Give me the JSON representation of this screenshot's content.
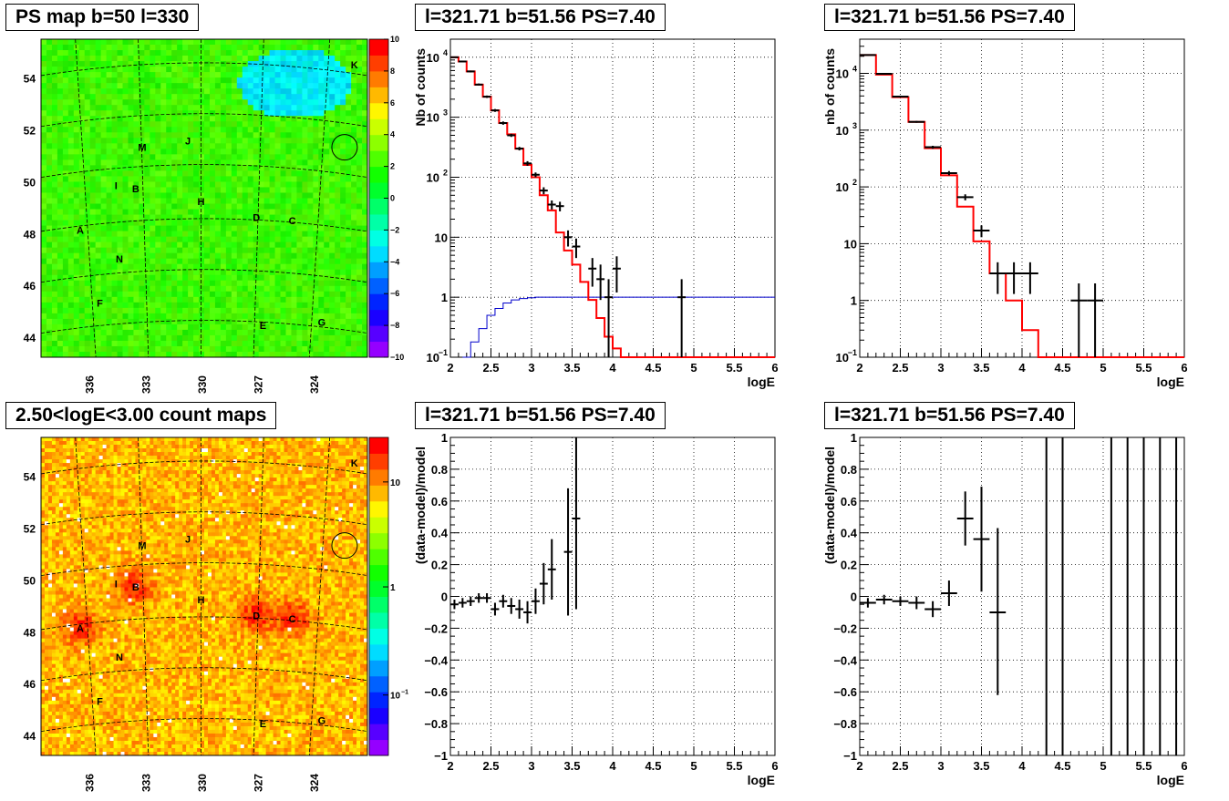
{
  "chart_data": [
    {
      "type": "heatmap",
      "title": "PS map b=50 l=330",
      "xlabel": "",
      "ylabel": "",
      "x_ticks": [
        "336",
        "333",
        "330",
        "327",
        "324"
      ],
      "y_ticks": [
        "54",
        "52",
        "50",
        "48",
        "46",
        "44"
      ],
      "colorbar": {
        "min": -10,
        "max": 10,
        "ticks": [
          "10",
          "8",
          "6",
          "4",
          "2",
          "0",
          "−2",
          "−4",
          "−6",
          "−8",
          "−10"
        ]
      },
      "sources": [
        "A",
        "B",
        "C",
        "D",
        "E",
        "F",
        "G",
        "H",
        "I",
        "J",
        "K",
        "M",
        "N"
      ]
    },
    {
      "type": "line",
      "title": "l=321.71 b=51.56 PS=7.40",
      "xlabel": "logE",
      "ylabel": "Nb of counts",
      "xlim": [
        2,
        6
      ],
      "ylim": [
        0.1,
        20000
      ],
      "log_y": true,
      "grid": true,
      "x_ticks": [
        "2",
        "2.5",
        "3",
        "3.5",
        "4",
        "4.5",
        "5",
        "5.5",
        "6"
      ],
      "y_ticks": [
        {
          "v": 0.1,
          "base": "10",
          "exp": "−1"
        },
        {
          "v": 1,
          "base": "1",
          "exp": ""
        },
        {
          "v": 10,
          "base": "10",
          "exp": ""
        },
        {
          "v": 100,
          "base": "10",
          "exp": "2"
        },
        {
          "v": 1000,
          "base": "10",
          "exp": "3"
        },
        {
          "v": 10000,
          "base": "10",
          "exp": "4"
        }
      ],
      "model_step": {
        "edges": [
          2.0,
          2.1,
          2.2,
          2.3,
          2.4,
          2.5,
          2.6,
          2.7,
          2.8,
          2.9,
          3.0,
          3.1,
          3.2,
          3.3,
          3.4,
          3.5,
          3.6,
          3.7,
          3.8,
          3.9,
          4.0,
          4.1,
          4.2,
          6.0
        ],
        "values": [
          10000,
          8500,
          5800,
          3500,
          2200,
          1300,
          800,
          520,
          300,
          160,
          100,
          50,
          28,
          12,
          6,
          3.5,
          1.8,
          0.9,
          0.45,
          0.22,
          0.14,
          0.1,
          0.1
        ]
      },
      "exposure_step": {
        "edges": [
          2.15,
          2.25,
          2.35,
          2.45,
          2.55,
          2.65,
          2.75,
          2.85,
          2.95,
          3.05,
          6.0
        ],
        "values": [
          0.1,
          0.18,
          0.3,
          0.5,
          0.65,
          0.8,
          0.9,
          0.95,
          0.98,
          1.0
        ]
      },
      "data_points": [
        {
          "x": 2.05,
          "y": 10000,
          "xerr": 0.05,
          "ylo": 9800,
          "yhi": 10200
        },
        {
          "x": 2.15,
          "y": 8500,
          "xerr": 0.05,
          "ylo": 8300,
          "yhi": 8700
        },
        {
          "x": 2.25,
          "y": 5800,
          "xerr": 0.05,
          "ylo": 5600,
          "yhi": 6000
        },
        {
          "x": 2.35,
          "y": 3500,
          "xerr": 0.05,
          "ylo": 3400,
          "yhi": 3650
        },
        {
          "x": 2.45,
          "y": 2200,
          "xerr": 0.05,
          "ylo": 2100,
          "yhi": 2300
        },
        {
          "x": 2.55,
          "y": 1300,
          "xerr": 0.05,
          "ylo": 1230,
          "yhi": 1370
        },
        {
          "x": 2.65,
          "y": 800,
          "xerr": 0.05,
          "ylo": 750,
          "yhi": 850
        },
        {
          "x": 2.75,
          "y": 500,
          "xerr": 0.05,
          "ylo": 470,
          "yhi": 530
        },
        {
          "x": 2.85,
          "y": 300,
          "xerr": 0.05,
          "ylo": 280,
          "yhi": 320
        },
        {
          "x": 2.95,
          "y": 170,
          "xerr": 0.05,
          "ylo": 155,
          "yhi": 185
        },
        {
          "x": 3.05,
          "y": 110,
          "xerr": 0.05,
          "ylo": 100,
          "yhi": 120
        },
        {
          "x": 3.15,
          "y": 60,
          "xerr": 0.05,
          "ylo": 52,
          "yhi": 68
        },
        {
          "x": 3.25,
          "y": 35,
          "xerr": 0.05,
          "ylo": 29,
          "yhi": 41
        },
        {
          "x": 3.35,
          "y": 33,
          "xerr": 0.05,
          "ylo": 27,
          "yhi": 39
        },
        {
          "x": 3.45,
          "y": 10,
          "xerr": 0.05,
          "ylo": 7,
          "yhi": 13
        },
        {
          "x": 3.55,
          "y": 7,
          "xerr": 0.05,
          "ylo": 4.5,
          "yhi": 9.5
        },
        {
          "x": 3.75,
          "y": 3,
          "xerr": 0.05,
          "ylo": 1.5,
          "yhi": 4.5
        },
        {
          "x": 3.85,
          "y": 2,
          "xerr": 0.05,
          "ylo": 0.9,
          "yhi": 3.5
        },
        {
          "x": 3.95,
          "y": 1,
          "xerr": 0.05,
          "ylo": 0.1,
          "yhi": 2
        },
        {
          "x": 4.05,
          "y": 3,
          "xerr": 0.05,
          "ylo": 1.2,
          "yhi": 4.8
        },
        {
          "x": 4.85,
          "y": 1,
          "xerr": 0.05,
          "ylo": 0.1,
          "yhi": 2
        }
      ]
    },
    {
      "type": "line",
      "title": "l=321.71 b=51.56 PS=7.40",
      "xlabel": "logE",
      "ylabel": "nb of counts",
      "xlim": [
        2,
        6
      ],
      "ylim": [
        0.1,
        40000
      ],
      "log_y": true,
      "grid": true,
      "x_ticks": [
        "2",
        "2.5",
        "3",
        "3.5",
        "4",
        "4.5",
        "5",
        "5.5",
        "6"
      ],
      "y_ticks": [
        {
          "v": 0.1,
          "base": "10",
          "exp": "−1"
        },
        {
          "v": 1,
          "base": "1",
          "exp": ""
        },
        {
          "v": 10,
          "base": "10",
          "exp": ""
        },
        {
          "v": 100,
          "base": "10",
          "exp": "2"
        },
        {
          "v": 1000,
          "base": "10",
          "exp": "3"
        },
        {
          "v": 10000,
          "base": "10",
          "exp": "4"
        }
      ],
      "model_step": {
        "edges": [
          2.0,
          2.2,
          2.4,
          2.6,
          2.8,
          3.0,
          3.2,
          3.4,
          3.6,
          3.8,
          4.0,
          4.2,
          6.0
        ],
        "values": [
          21000,
          9500,
          3800,
          1400,
          480,
          160,
          45,
          11,
          3,
          1,
          0.3,
          0.1
        ]
      },
      "data_points": [
        {
          "x": 2.1,
          "y": 21000,
          "xerr": 0.1,
          "ylo": 20500,
          "yhi": 21500
        },
        {
          "x": 2.3,
          "y": 9800,
          "xerr": 0.1,
          "ylo": 9500,
          "yhi": 10100
        },
        {
          "x": 2.5,
          "y": 3900,
          "xerr": 0.1,
          "ylo": 3750,
          "yhi": 4050
        },
        {
          "x": 2.7,
          "y": 1400,
          "xerr": 0.1,
          "ylo": 1350,
          "yhi": 1450
        },
        {
          "x": 2.9,
          "y": 500,
          "xerr": 0.1,
          "ylo": 470,
          "yhi": 530
        },
        {
          "x": 3.1,
          "y": 175,
          "xerr": 0.1,
          "ylo": 160,
          "yhi": 190
        },
        {
          "x": 3.3,
          "y": 66,
          "xerr": 0.1,
          "ylo": 58,
          "yhi": 74
        },
        {
          "x": 3.5,
          "y": 17,
          "xerr": 0.1,
          "ylo": 13,
          "yhi": 21
        },
        {
          "x": 3.7,
          "y": 3,
          "xerr": 0.1,
          "ylo": 1.3,
          "yhi": 4.7
        },
        {
          "x": 3.9,
          "y": 3,
          "xerr": 0.1,
          "ylo": 1.3,
          "yhi": 4.7
        },
        {
          "x": 4.1,
          "y": 3,
          "xerr": 0.1,
          "ylo": 1.3,
          "yhi": 4.7
        },
        {
          "x": 4.7,
          "y": 1,
          "xerr": 0.1,
          "ylo": 0.1,
          "yhi": 2
        },
        {
          "x": 4.9,
          "y": 1,
          "xerr": 0.1,
          "ylo": 0.1,
          "yhi": 2
        }
      ]
    },
    {
      "type": "heatmap",
      "title": "2.50<logE<3.00 count maps",
      "xlabel": "",
      "ylabel": "",
      "x_ticks": [
        "336",
        "333",
        "330",
        "327",
        "324"
      ],
      "y_ticks": [
        "54",
        "52",
        "50",
        "48",
        "46",
        "44"
      ],
      "colorbar": {
        "log": true,
        "ticks": [
          {
            "base": "10",
            "exp": ""
          },
          {
            "base": "1",
            "exp": ""
          },
          {
            "base": "10",
            "exp": "−1"
          }
        ]
      },
      "sources": [
        "A",
        "B",
        "C",
        "D",
        "E",
        "F",
        "G",
        "H",
        "I",
        "J",
        "K",
        "M",
        "N"
      ]
    },
    {
      "type": "scatter",
      "title": "l=321.71 b=51.56 PS=7.40",
      "xlabel": "logE",
      "ylabel": "(data-model)/model",
      "xlim": [
        2,
        6
      ],
      "ylim": [
        -1,
        1
      ],
      "grid": true,
      "x_ticks": [
        "2",
        "2.5",
        "3",
        "3.5",
        "4",
        "4.5",
        "5",
        "5.5",
        "6"
      ],
      "y_ticks": [
        "1",
        "0.8",
        "0.6",
        "0.4",
        "0.2",
        "0",
        "−0.2",
        "−0.4",
        "−0.6",
        "−0.8",
        "−1"
      ],
      "data_points": [
        {
          "x": 2.05,
          "y": -0.05,
          "xerr": 0.05,
          "ylo": -0.08,
          "yhi": -0.02
        },
        {
          "x": 2.15,
          "y": -0.04,
          "xerr": 0.05,
          "ylo": -0.07,
          "yhi": -0.01
        },
        {
          "x": 2.25,
          "y": -0.03,
          "xerr": 0.05,
          "ylo": -0.06,
          "yhi": 0.0
        },
        {
          "x": 2.35,
          "y": -0.01,
          "xerr": 0.05,
          "ylo": -0.04,
          "yhi": 0.02
        },
        {
          "x": 2.45,
          "y": -0.01,
          "xerr": 0.05,
          "ylo": -0.04,
          "yhi": 0.02
        },
        {
          "x": 2.55,
          "y": -0.08,
          "xerr": 0.05,
          "ylo": -0.12,
          "yhi": -0.04
        },
        {
          "x": 2.65,
          "y": -0.03,
          "xerr": 0.05,
          "ylo": -0.07,
          "yhi": 0.01
        },
        {
          "x": 2.75,
          "y": -0.06,
          "xerr": 0.05,
          "ylo": -0.11,
          "yhi": -0.01
        },
        {
          "x": 2.85,
          "y": -0.08,
          "xerr": 0.05,
          "ylo": -0.14,
          "yhi": -0.02
        },
        {
          "x": 2.95,
          "y": -0.1,
          "xerr": 0.05,
          "ylo": -0.17,
          "yhi": -0.03
        },
        {
          "x": 3.05,
          "y": -0.03,
          "xerr": 0.05,
          "ylo": -0.11,
          "yhi": 0.05
        },
        {
          "x": 3.15,
          "y": 0.08,
          "xerr": 0.05,
          "ylo": -0.05,
          "yhi": 0.21
        },
        {
          "x": 3.25,
          "y": 0.17,
          "xerr": 0.05,
          "ylo": -0.02,
          "yhi": 0.36
        },
        {
          "x": 3.45,
          "y": 0.28,
          "xerr": 0.05,
          "ylo": -0.12,
          "yhi": 0.68
        },
        {
          "x": 3.55,
          "y": 0.49,
          "xerr": 0.05,
          "ylo": -0.08,
          "yhi": 1.0
        }
      ]
    },
    {
      "type": "scatter",
      "title": "l=321.71 b=51.56 PS=7.40",
      "xlabel": "logE",
      "ylabel": "(data-model)/model",
      "xlim": [
        2,
        6
      ],
      "ylim": [
        -1,
        1
      ],
      "grid": true,
      "x_ticks": [
        "2",
        "2.5",
        "3",
        "3.5",
        "4",
        "4.5",
        "5",
        "5.5",
        "6"
      ],
      "y_ticks": [
        "1",
        "0.8",
        "0.6",
        "0.4",
        "0.2",
        "0",
        "−0.2",
        "−0.4",
        "−0.6",
        "−0.8",
        "−1"
      ],
      "data_points": [
        {
          "x": 2.1,
          "y": -0.04,
          "xerr": 0.1,
          "ylo": -0.07,
          "yhi": -0.01
        },
        {
          "x": 2.3,
          "y": -0.02,
          "xerr": 0.1,
          "ylo": -0.05,
          "yhi": 0.01
        },
        {
          "x": 2.5,
          "y": -0.03,
          "xerr": 0.1,
          "ylo": -0.06,
          "yhi": 0.0
        },
        {
          "x": 2.7,
          "y": -0.04,
          "xerr": 0.1,
          "ylo": -0.08,
          "yhi": 0.0
        },
        {
          "x": 2.9,
          "y": -0.08,
          "xerr": 0.1,
          "ylo": -0.13,
          "yhi": -0.03
        },
        {
          "x": 3.1,
          "y": 0.02,
          "xerr": 0.1,
          "ylo": -0.06,
          "yhi": 0.1
        },
        {
          "x": 3.3,
          "y": 0.49,
          "xerr": 0.1,
          "ylo": 0.32,
          "yhi": 0.66
        },
        {
          "x": 3.5,
          "y": 0.36,
          "xerr": 0.1,
          "ylo": 0.03,
          "yhi": 0.69
        },
        {
          "x": 3.7,
          "y": -0.1,
          "xerr": 0.1,
          "ylo": -0.62,
          "yhi": 0.43
        },
        {
          "x": 4.3,
          "y": 1.0,
          "xerr": 0,
          "ylo": -1.0,
          "yhi": 1.0
        },
        {
          "x": 4.5,
          "y": 1.0,
          "xerr": 0,
          "ylo": -1.0,
          "yhi": 1.0
        },
        {
          "x": 5.1,
          "y": 1.0,
          "xerr": 0,
          "ylo": -1.0,
          "yhi": 1.0
        },
        {
          "x": 5.3,
          "y": 1.0,
          "xerr": 0,
          "ylo": -1.0,
          "yhi": 1.0
        },
        {
          "x": 5.5,
          "y": 1.0,
          "xerr": 0,
          "ylo": -1.0,
          "yhi": 1.0
        },
        {
          "x": 5.7,
          "y": 1.0,
          "xerr": 0,
          "ylo": -1.0,
          "yhi": 1.0
        },
        {
          "x": 5.9,
          "y": 1.0,
          "xerr": 0,
          "ylo": -1.0,
          "yhi": 1.0
        }
      ]
    }
  ],
  "colors": {
    "model_line": "#ff0000",
    "exposure_line": "#0000cc",
    "data_marks": "#000000",
    "grid": "#000000"
  }
}
